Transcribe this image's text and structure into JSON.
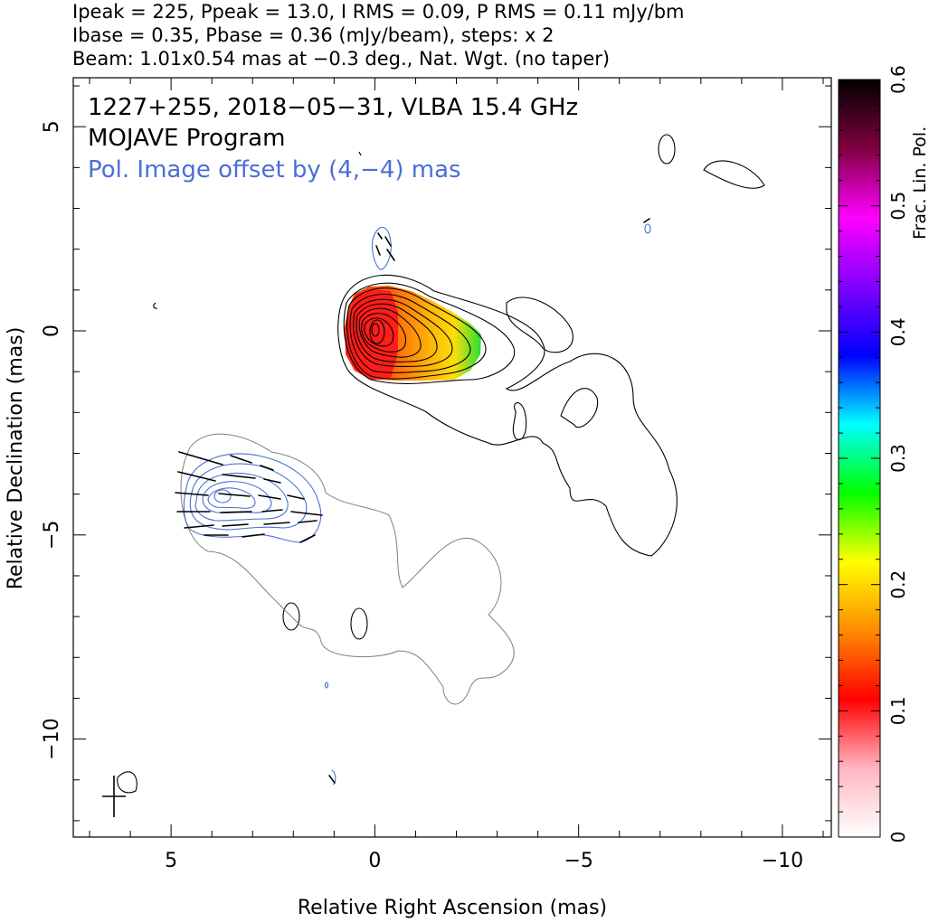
{
  "header": {
    "line1": "Ipeak = 225, Ppeak = 13.0, I RMS = 0.09, P RMS = 0.11 mJy/bm",
    "line2": "Ibase = 0.35, Pbase = 0.36 (mJy/beam), steps: x 2",
    "line3": "Beam: 1.01x0.54 mas at −0.3 deg., Nat. Wgt. (no taper)"
  },
  "annotations": {
    "source": "1227+255, 2018−05−31, VLBA 15.4 GHz",
    "program": "MOJAVE Program",
    "offset_note": "Pol. Image offset by (4,−4) mas"
  },
  "colors": {
    "frame": "#000000",
    "total_intensity_contour": "#000000",
    "pol_contour": "#4a6fd6",
    "pol_base_contour": "#7f7f7f",
    "offset_note": "#4a6fd6"
  },
  "chart_data": {
    "type": "heatmap",
    "xlabel": "Relative Right Ascension (mas)",
    "ylabel": "Relative Declination (mas)",
    "xlim": [
      7.4,
      -11.2
    ],
    "ylim": [
      -12.4,
      6.2
    ],
    "x_inverted": true,
    "x_ticks": [
      5,
      0,
      -5,
      -10
    ],
    "x_tick_labels": [
      "5",
      "0",
      "−5",
      "−10"
    ],
    "y_ticks": [
      5,
      0,
      -5,
      -10
    ],
    "y_tick_labels": [
      "5",
      "0",
      "−5",
      "−10"
    ],
    "colorbar": {
      "label": "Frac. Lin. Pol.",
      "range": [
        0,
        0.6
      ],
      "ticks": [
        0,
        0.1,
        0.2,
        0.3,
        0.4,
        0.5,
        0.6
      ],
      "tick_labels": [
        "0",
        "0.1",
        "0.2",
        "0.3",
        "0.4",
        "0.5",
        "0.6"
      ],
      "scale_colors": [
        "#ffffff",
        "#ffb6c1",
        "#ff0000",
        "#ff8c00",
        "#ffff00",
        "#00ff00",
        "#00ffff",
        "#0000ff",
        "#8000ff",
        "#ff00ff",
        "#800040",
        "#000000"
      ]
    },
    "core_position": [
      0,
      0
    ],
    "peak_intensity_mJy_per_beam": 225,
    "peak_polarized_mJy_per_beam": 13.0,
    "contour_base_I": 0.35,
    "contour_base_P": 0.36,
    "contour_step_factor": 2,
    "pol_offset_mas": [
      4,
      -4
    ],
    "beam": {
      "major_mas": 1.01,
      "minor_mas": 0.54,
      "pa_deg": -0.3,
      "position": [
        6.5,
        -11.5
      ]
    },
    "fractional_polarization_regions": [
      {
        "ra": 0.0,
        "dec": 0.0,
        "frac_pol": 0.05
      },
      {
        "ra": -0.9,
        "dec": 0.0,
        "frac_pol": 0.18
      },
      {
        "ra": -1.6,
        "dec": -0.3,
        "frac_pol": 0.22
      },
      {
        "ra": -2.2,
        "dec": -0.7,
        "frac_pol": 0.29
      }
    ]
  }
}
